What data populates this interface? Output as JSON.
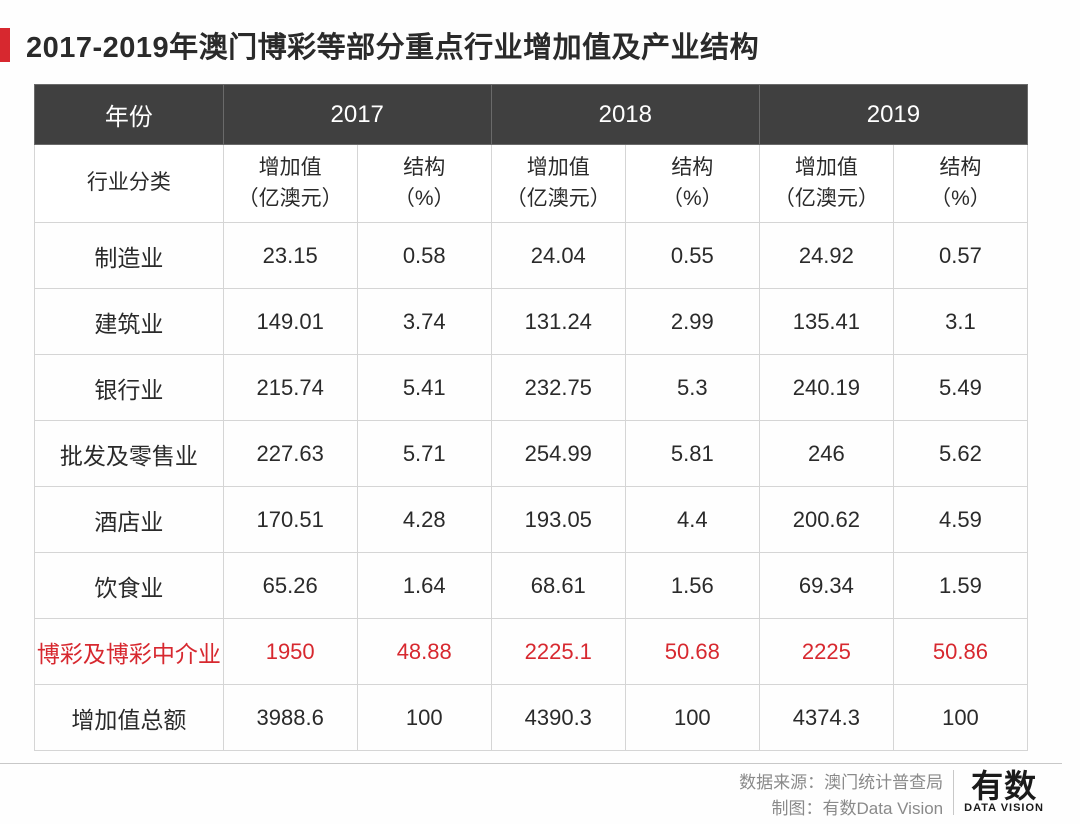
{
  "title": "2017-2019年澳门博彩等部分重点行业增加值及产业结构",
  "colors": {
    "accent": "#d7282f",
    "header_bg": "#404040",
    "header_fg": "#ffffff",
    "border": "#d5d5d5",
    "text": "#2a2a2a",
    "footer_text": "#8a8a8a"
  },
  "table": {
    "year_header_first": "年份",
    "years": [
      "2017",
      "2018",
      "2019"
    ],
    "subhead_first": "行业分类",
    "subhead_cols": [
      "增加值\n（亿澳元）",
      "结构\n（%）"
    ],
    "rows": [
      {
        "label": "制造业",
        "values": [
          "23.15",
          "0.58",
          "24.04",
          "0.55",
          "24.92",
          "0.57"
        ],
        "highlight": false
      },
      {
        "label": "建筑业",
        "values": [
          "149.01",
          "3.74",
          "131.24",
          "2.99",
          "135.41",
          "3.1"
        ],
        "highlight": false
      },
      {
        "label": "银行业",
        "values": [
          "215.74",
          "5.41",
          "232.75",
          "5.3",
          "240.19",
          "5.49"
        ],
        "highlight": false
      },
      {
        "label": "批发及零售业",
        "values": [
          "227.63",
          "5.71",
          "254.99",
          "5.81",
          "246",
          "5.62"
        ],
        "highlight": false
      },
      {
        "label": "酒店业",
        "values": [
          "170.51",
          "4.28",
          "193.05",
          "4.4",
          "200.62",
          "4.59"
        ],
        "highlight": false
      },
      {
        "label": "饮食业",
        "values": [
          "65.26",
          "1.64",
          "68.61",
          "1.56",
          "69.34",
          "1.59"
        ],
        "highlight": false
      },
      {
        "label": "博彩及博彩中介业",
        "values": [
          "1950",
          "48.88",
          "2225.1",
          "50.68",
          "2225",
          "50.86"
        ],
        "highlight": true
      },
      {
        "label": "增加值总额",
        "values": [
          "3988.6",
          "100",
          "4390.3",
          "100",
          "4374.3",
          "100"
        ],
        "highlight": false
      }
    ],
    "col_widths": {
      "first": "19%",
      "data": "13.5%"
    }
  },
  "footer": {
    "source_label": "数据来源：",
    "source_value": "澳门统计普查局",
    "chart_label": "制图：",
    "chart_value": "有数Data Vision",
    "logo_main": "有数",
    "logo_sub": "DATA VISION"
  }
}
